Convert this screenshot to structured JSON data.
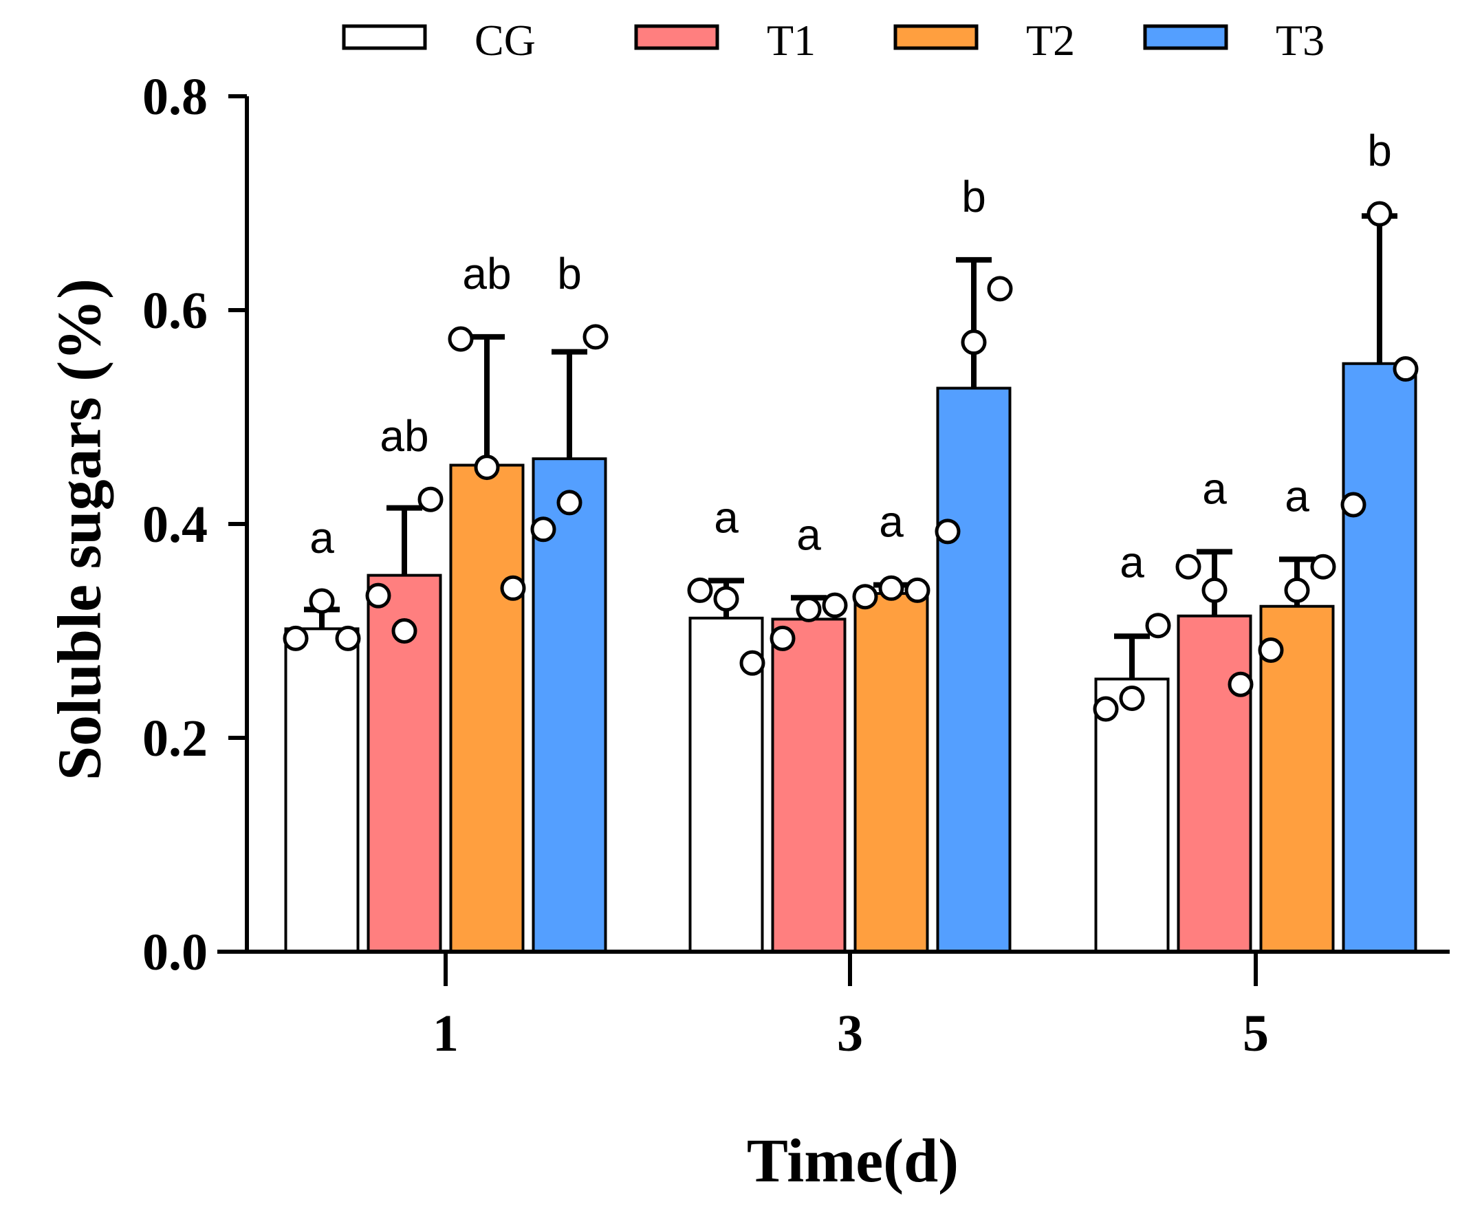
{
  "chart_data": {
    "type": "bar",
    "title": "",
    "xlabel": "Time(d)",
    "ylabel": "Soluble sugars (%)",
    "ylim": [
      0,
      0.8
    ],
    "yticks": [
      "0.0",
      "0.2",
      "0.4",
      "0.6",
      "0.8"
    ],
    "categories": [
      "1",
      "3",
      "5"
    ],
    "legend_position": "top",
    "series": [
      {
        "name": "CG",
        "color": "#ffffff",
        "values": [
          0.302,
          0.312,
          0.255
        ],
        "errors": [
          0.018,
          0.035,
          0.04
        ],
        "points": [
          [
            0.293,
            0.328,
            0.293
          ],
          [
            0.338,
            0.33,
            0.27
          ],
          [
            0.227,
            0.237,
            0.305
          ]
        ],
        "sig": [
          "a",
          "a",
          "a"
        ]
      },
      {
        "name": "T1",
        "color": "#ff7f7f",
        "values": [
          0.352,
          0.311,
          0.314
        ],
        "errors": [
          0.063,
          0.02,
          0.06
        ],
        "points": [
          [
            0.333,
            0.3,
            0.423
          ],
          [
            0.293,
            0.32,
            0.324
          ],
          [
            0.36,
            0.338,
            0.25
          ]
        ],
        "sig": [
          "ab",
          "a",
          "a"
        ]
      },
      {
        "name": "T2",
        "color": "#ff9f3f",
        "values": [
          0.455,
          0.335,
          0.323
        ],
        "errors": [
          0.12,
          0.008,
          0.044
        ],
        "points": [
          [
            0.573,
            0.453,
            0.34
          ],
          [
            0.332,
            0.34,
            0.338
          ],
          [
            0.282,
            0.338,
            0.36
          ]
        ],
        "sig": [
          "ab",
          "a",
          "a"
        ]
      },
      {
        "name": "T3",
        "color": "#549fff",
        "values": [
          0.461,
          0.527,
          0.55
        ],
        "errors": [
          0.1,
          0.12,
          0.138
        ],
        "points": [
          [
            0.395,
            0.42,
            0.575
          ],
          [
            0.393,
            0.57,
            0.62
          ],
          [
            0.418,
            0.69,
            0.545
          ]
        ],
        "sig": [
          "b",
          "b",
          "b"
        ]
      }
    ]
  }
}
